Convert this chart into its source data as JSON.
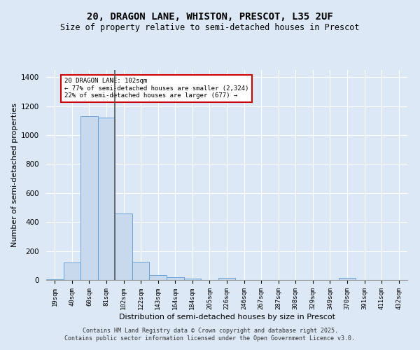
{
  "title": "20, DRAGON LANE, WHISTON, PRESCOT, L35 2UF",
  "subtitle": "Size of property relative to semi-detached houses in Prescot",
  "xlabel": "Distribution of semi-detached houses by size in Prescot",
  "ylabel": "Number of semi-detached properties",
  "categories": [
    "19sqm",
    "40sqm",
    "60sqm",
    "81sqm",
    "102sqm",
    "122sqm",
    "143sqm",
    "164sqm",
    "184sqm",
    "205sqm",
    "226sqm",
    "246sqm",
    "267sqm",
    "287sqm",
    "308sqm",
    "329sqm",
    "349sqm",
    "370sqm",
    "391sqm",
    "411sqm",
    "432sqm"
  ],
  "values": [
    5,
    120,
    1130,
    1120,
    460,
    125,
    35,
    20,
    10,
    0,
    15,
    0,
    0,
    0,
    0,
    0,
    0,
    15,
    0,
    0,
    0
  ],
  "bar_color": "#c8d9ed",
  "bar_edge_color": "#5b9bd5",
  "vline_x": 3.5,
  "vline_color": "#555555",
  "annotation_text": "20 DRAGON LANE: 102sqm\n← 77% of semi-detached houses are smaller (2,324)\n22% of semi-detached houses are larger (677) →",
  "annotation_box_color": "#cc0000",
  "ylim": [
    0,
    1450
  ],
  "yticks": [
    0,
    200,
    400,
    600,
    800,
    1000,
    1200,
    1400
  ],
  "footer_line1": "Contains HM Land Registry data © Crown copyright and database right 2025.",
  "footer_line2": "Contains public sector information licensed under the Open Government Licence v3.0.",
  "bg_color": "#dce8f5",
  "plot_bg_color": "#dce8f5",
  "grid_color": "#ffffff",
  "title_fontsize": 10,
  "subtitle_fontsize": 8.5,
  "axis_label_fontsize": 8,
  "tick_fontsize": 6.5,
  "footer_fontsize": 6
}
